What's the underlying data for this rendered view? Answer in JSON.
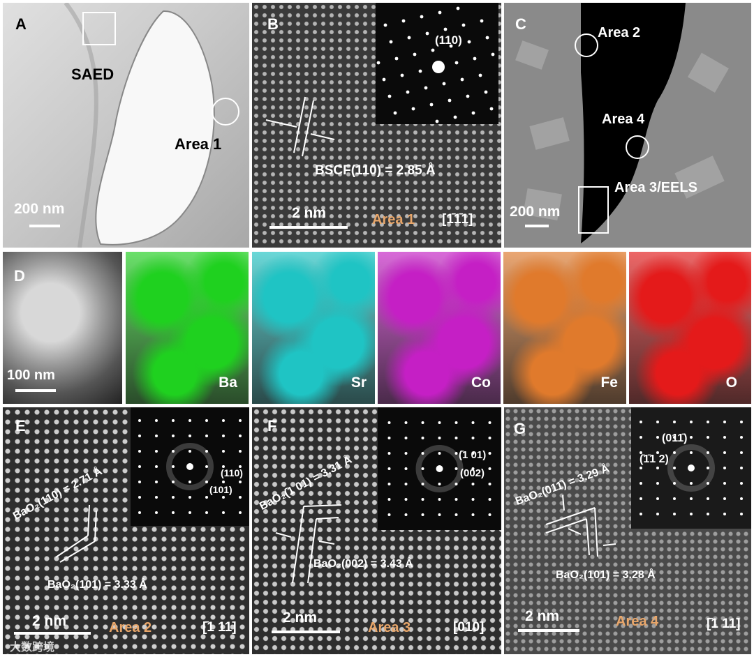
{
  "panels": {
    "A": {
      "label": "A",
      "saed": "SAED",
      "area": "Area 1",
      "scale": "200 nm"
    },
    "B": {
      "label": "B",
      "spot": "(110)",
      "spacing": "BSCF(110) = 2.85 Å",
      "scale": "2 nm",
      "area": "Area 1",
      "zone": "[1̄1̄1]"
    },
    "C": {
      "label": "C",
      "area2": "Area 2",
      "area4": "Area 4",
      "area3": "Area 3/EELS",
      "scale": "200 nm"
    },
    "D": {
      "label": "D",
      "scale": "100 nm"
    },
    "E": {
      "label": "E",
      "spacing_a": "BaO₂(110) = 2.71 Å",
      "spacing_b": "BaO₂(101) = 3.33 Å",
      "spot1": "(110)",
      "spot2": "(101)",
      "scale": "2 nm",
      "area": "Area 2",
      "zone": "[̄1 11]"
    },
    "F": {
      "label": "F",
      "spacing_a": "BaO₂(̄1 01) = 3.31 Å",
      "spacing_b": "BaO₂(002) = 3.43 Å",
      "spot1": "(̄1 01)",
      "spot2": "(002)",
      "scale": "2 nm",
      "area": "Area 3",
      "zone": "[010]"
    },
    "G": {
      "label": "G",
      "spacing_a": "BaO₂(011̄) = 3.29 Å",
      "spacing_b": "BaO₂(101) = 3.28 Å",
      "spot1": "(011̄)",
      "spot2": "(̄1̄1 2)",
      "scale": "2 nm",
      "area": "Area 4",
      "zone": "[̄1 11]"
    }
  },
  "maps": [
    {
      "element": "Ba",
      "color": "#1fd11f"
    },
    {
      "element": "Sr",
      "color": "#1fc4c4"
    },
    {
      "element": "Co",
      "color": "#c51fc5"
    },
    {
      "element": "Fe",
      "color": "#e07a2c"
    },
    {
      "element": "O",
      "color": "#e41a1a"
    }
  ],
  "watermark": "大数跨境",
  "colors": {
    "area_label": "#e8a66a",
    "label_white": "#ffffff",
    "label_black": "#000000"
  }
}
